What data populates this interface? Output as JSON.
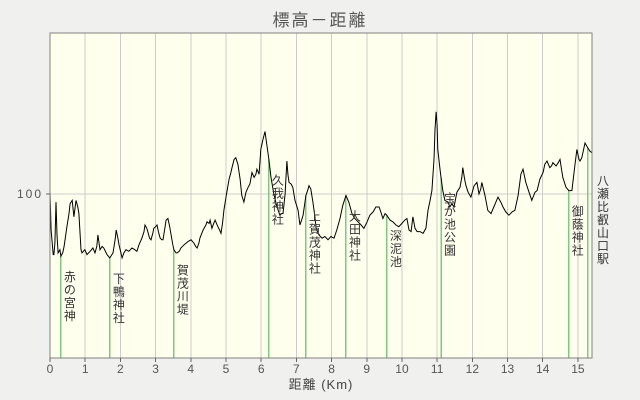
{
  "page": {
    "background": "#f0f0ef"
  },
  "chart_data": {
    "type": "line",
    "title": "標高－距離",
    "xlabel": "距離 (Km)",
    "x_unit": "Km",
    "xlim": [
      0,
      15.4
    ],
    "ylim": [
      0,
      198
    ],
    "x_ticks": [
      0,
      1,
      2,
      3,
      4,
      5,
      6,
      7,
      8,
      9,
      10,
      11,
      12,
      13,
      14,
      15
    ],
    "y_ticks": [
      100
    ],
    "grid": {
      "vertical_every_km": 1,
      "horizontal_at": [
        100
      ]
    },
    "colors": {
      "page_bg": "#f0f0ef",
      "plot_bg": "#ffffee",
      "grid": "#cccccc",
      "waypoint_line": "#7fc87f",
      "profile_line": "#000000",
      "border": "#808080",
      "text": "#444444",
      "tick_text": "#555555"
    },
    "series": [
      {
        "name": "標高",
        "points": [
          [
            0.0,
            101
          ],
          [
            0.03,
            78
          ],
          [
            0.09,
            63
          ],
          [
            0.11,
            63
          ],
          [
            0.14,
            70
          ],
          [
            0.17,
            95
          ],
          [
            0.2,
            75
          ],
          [
            0.23,
            64
          ],
          [
            0.28,
            66
          ],
          [
            0.31,
            62
          ],
          [
            0.36,
            64
          ],
          [
            0.4,
            68
          ],
          [
            0.48,
            80
          ],
          [
            0.54,
            88
          ],
          [
            0.57,
            94
          ],
          [
            0.63,
            96
          ],
          [
            0.68,
            86
          ],
          [
            0.74,
            96
          ],
          [
            0.79,
            92
          ],
          [
            0.82,
            88
          ],
          [
            0.88,
            66
          ],
          [
            0.91,
            64
          ],
          [
            0.99,
            66
          ],
          [
            1.05,
            63
          ],
          [
            1.14,
            65
          ],
          [
            1.22,
            67
          ],
          [
            1.28,
            64
          ],
          [
            1.33,
            68
          ],
          [
            1.36,
            75
          ],
          [
            1.42,
            66
          ],
          [
            1.48,
            68
          ],
          [
            1.53,
            67
          ],
          [
            1.62,
            63
          ],
          [
            1.7,
            61
          ],
          [
            1.79,
            64
          ],
          [
            1.85,
            72
          ],
          [
            1.88,
            78
          ],
          [
            1.93,
            73
          ],
          [
            1.96,
            69
          ],
          [
            2.05,
            61
          ],
          [
            2.1,
            64
          ],
          [
            2.16,
            66
          ],
          [
            2.24,
            65
          ],
          [
            2.33,
            67
          ],
          [
            2.41,
            66
          ],
          [
            2.47,
            65
          ],
          [
            2.53,
            69
          ],
          [
            2.61,
            73
          ],
          [
            2.67,
            77
          ],
          [
            2.7,
            81
          ],
          [
            2.75,
            79
          ],
          [
            2.78,
            77
          ],
          [
            2.83,
            73
          ],
          [
            2.87,
            72
          ],
          [
            2.92,
            76
          ],
          [
            2.95,
            79
          ],
          [
            3.0,
            80
          ],
          [
            3.04,
            81
          ],
          [
            3.09,
            76
          ],
          [
            3.13,
            73
          ],
          [
            3.18,
            72
          ],
          [
            3.21,
            72
          ],
          [
            3.27,
            80
          ],
          [
            3.3,
            84
          ],
          [
            3.35,
            85
          ],
          [
            3.4,
            80
          ],
          [
            3.44,
            75
          ],
          [
            3.49,
            69
          ],
          [
            3.52,
            66
          ],
          [
            3.58,
            64
          ],
          [
            3.61,
            64
          ],
          [
            3.67,
            65
          ],
          [
            3.72,
            67
          ],
          [
            3.81,
            69
          ],
          [
            3.87,
            70
          ],
          [
            3.92,
            71
          ],
          [
            4.01,
            72
          ],
          [
            4.09,
            70
          ],
          [
            4.14,
            68
          ],
          [
            4.18,
            67
          ],
          [
            4.23,
            70
          ],
          [
            4.26,
            73
          ],
          [
            4.35,
            78
          ],
          [
            4.43,
            81
          ],
          [
            4.46,
            83
          ],
          [
            4.52,
            82
          ],
          [
            4.55,
            84
          ],
          [
            4.6,
            79
          ],
          [
            4.65,
            82
          ],
          [
            4.69,
            84
          ],
          [
            4.73,
            82
          ],
          [
            4.77,
            80
          ],
          [
            4.82,
            78
          ],
          [
            4.86,
            76
          ],
          [
            4.9,
            82
          ],
          [
            4.94,
            90
          ],
          [
            5.0,
            98
          ],
          [
            5.09,
            109
          ],
          [
            5.14,
            113
          ],
          [
            5.17,
            116
          ],
          [
            5.23,
            121
          ],
          [
            5.28,
            122
          ],
          [
            5.34,
            118
          ],
          [
            5.4,
            109
          ],
          [
            5.45,
            99
          ],
          [
            5.51,
            95
          ],
          [
            5.57,
            101
          ],
          [
            5.63,
            104
          ],
          [
            5.68,
            106
          ],
          [
            5.74,
            113
          ],
          [
            5.8,
            110
          ],
          [
            5.85,
            112
          ],
          [
            5.88,
            115
          ],
          [
            5.94,
            112
          ],
          [
            5.99,
            127
          ],
          [
            6.05,
            133
          ],
          [
            6.11,
            138
          ],
          [
            6.16,
            130
          ],
          [
            6.22,
            121
          ],
          [
            6.28,
            110
          ],
          [
            6.36,
            100
          ],
          [
            6.45,
            92
          ],
          [
            6.5,
            89
          ],
          [
            6.53,
            87
          ],
          [
            6.58,
            88
          ],
          [
            6.62,
            88
          ],
          [
            6.68,
            100
          ],
          [
            6.73,
            120
          ],
          [
            6.76,
            112
          ],
          [
            6.79,
            107
          ],
          [
            6.85,
            106
          ],
          [
            6.9,
            104
          ],
          [
            6.96,
            96
          ],
          [
            7.05,
            90
          ],
          [
            7.1,
            81
          ],
          [
            7.15,
            84
          ],
          [
            7.19,
            87
          ],
          [
            7.23,
            93
          ],
          [
            7.27,
            99
          ],
          [
            7.32,
            102
          ],
          [
            7.36,
            105
          ],
          [
            7.41,
            103
          ],
          [
            7.47,
            95
          ],
          [
            7.52,
            87
          ],
          [
            7.56,
            79
          ],
          [
            7.64,
            75
          ],
          [
            7.73,
            73
          ],
          [
            7.81,
            74
          ],
          [
            7.9,
            72
          ],
          [
            7.98,
            74
          ],
          [
            8.07,
            73
          ],
          [
            8.15,
            78
          ],
          [
            8.24,
            85
          ],
          [
            8.32,
            93
          ],
          [
            8.38,
            97
          ],
          [
            8.41,
            99
          ],
          [
            8.45,
            97
          ],
          [
            8.49,
            95
          ],
          [
            8.58,
            88
          ],
          [
            8.66,
            85
          ],
          [
            8.75,
            83
          ],
          [
            8.84,
            81
          ],
          [
            8.92,
            79
          ],
          [
            9.01,
            83
          ],
          [
            9.09,
            87
          ],
          [
            9.18,
            89
          ],
          [
            9.26,
            92
          ],
          [
            9.35,
            92
          ],
          [
            9.4,
            89
          ],
          [
            9.46,
            85
          ],
          [
            9.52,
            88
          ],
          [
            9.57,
            87
          ],
          [
            9.66,
            84
          ],
          [
            9.74,
            83
          ],
          [
            9.83,
            81
          ],
          [
            9.91,
            80
          ],
          [
            10.0,
            82
          ],
          [
            10.08,
            84
          ],
          [
            10.14,
            85
          ],
          [
            10.2,
            78
          ],
          [
            10.26,
            77
          ],
          [
            10.31,
            86
          ],
          [
            10.37,
            79
          ],
          [
            10.43,
            77
          ],
          [
            10.51,
            77
          ],
          [
            10.6,
            76
          ],
          [
            10.68,
            79
          ],
          [
            10.74,
            90
          ],
          [
            10.8,
            96
          ],
          [
            10.85,
            102
          ],
          [
            10.91,
            121
          ],
          [
            10.94,
            139
          ],
          [
            10.97,
            150
          ],
          [
            11.0,
            142
          ],
          [
            11.02,
            127
          ],
          [
            11.08,
            115
          ],
          [
            11.11,
            110
          ],
          [
            11.16,
            102
          ],
          [
            11.22,
            96
          ],
          [
            11.31,
            95
          ],
          [
            11.36,
            92
          ],
          [
            11.42,
            94
          ],
          [
            11.48,
            92
          ],
          [
            11.56,
            101
          ],
          [
            11.65,
            104
          ],
          [
            11.7,
            110
          ],
          [
            11.73,
            116
          ],
          [
            11.78,
            109
          ],
          [
            11.82,
            105
          ],
          [
            11.88,
            101
          ],
          [
            11.96,
            98
          ],
          [
            12.05,
            105
          ],
          [
            12.13,
            107
          ],
          [
            12.19,
            100
          ],
          [
            12.24,
            103
          ],
          [
            12.27,
            107
          ],
          [
            12.36,
            99
          ],
          [
            12.44,
            90
          ],
          [
            12.53,
            88
          ],
          [
            12.61,
            92
          ],
          [
            12.67,
            95
          ],
          [
            12.73,
            98
          ],
          [
            12.81,
            95
          ],
          [
            12.87,
            92
          ],
          [
            12.95,
            89
          ],
          [
            13.04,
            87
          ],
          [
            13.13,
            89
          ],
          [
            13.21,
            90
          ],
          [
            13.3,
            99
          ],
          [
            13.38,
            112
          ],
          [
            13.44,
            115
          ],
          [
            13.52,
            107
          ],
          [
            13.61,
            101
          ],
          [
            13.69,
            96
          ],
          [
            13.78,
            101
          ],
          [
            13.84,
            102
          ],
          [
            13.92,
            109
          ],
          [
            14.01,
            113
          ],
          [
            14.06,
            118
          ],
          [
            14.12,
            120
          ],
          [
            14.2,
            116
          ],
          [
            14.25,
            117
          ],
          [
            14.29,
            119
          ],
          [
            14.38,
            117
          ],
          [
            14.44,
            119
          ],
          [
            14.49,
            121
          ],
          [
            14.57,
            110
          ],
          [
            14.66,
            104
          ],
          [
            14.74,
            102
          ],
          [
            14.83,
            102
          ],
          [
            14.91,
            117
          ],
          [
            14.97,
            127
          ],
          [
            15.03,
            121
          ],
          [
            15.06,
            120
          ],
          [
            15.11,
            122
          ],
          [
            15.2,
            131
          ],
          [
            15.28,
            128
          ],
          [
            15.34,
            126
          ],
          [
            15.4,
            125
          ]
        ]
      }
    ],
    "waypoints": [
      {
        "name": "赤の宮神",
        "km": 0.31
      },
      {
        "name": "下鴨神社",
        "km": 1.7
      },
      {
        "name": "賀茂川堤",
        "km": 3.52
      },
      {
        "name": "久我神社",
        "km": 6.22
      },
      {
        "name": "上賀茂神社",
        "km": 7.27
      },
      {
        "name": "大田神社",
        "km": 8.41
      },
      {
        "name": "深泥池",
        "km": 9.57
      },
      {
        "name": "宝が池公園",
        "km": 11.11
      },
      {
        "name": "御蔭神社",
        "km": 14.74
      },
      {
        "name": "八瀬比叡山口駅",
        "km": 15.28,
        "label_outside": true
      }
    ]
  }
}
